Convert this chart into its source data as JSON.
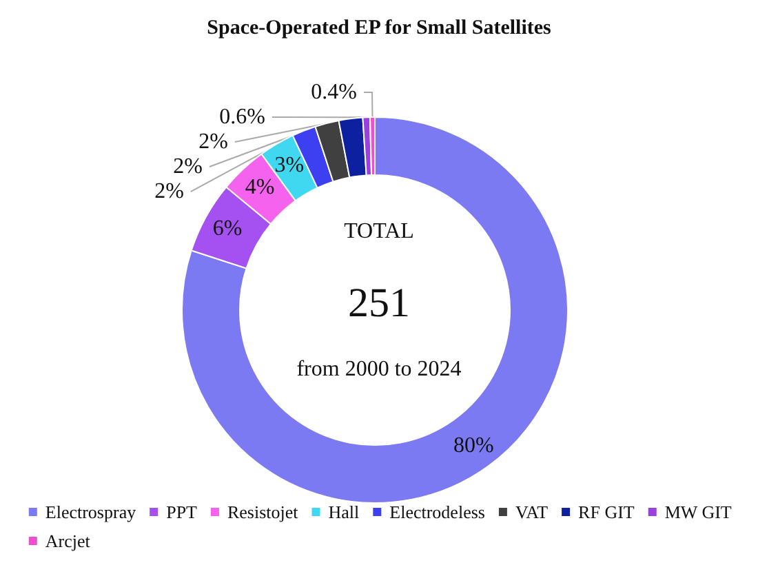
{
  "chart_data": {
    "type": "donut",
    "title": "Space-Operated EP for Small Satellites",
    "categories": [
      "Electrospray",
      "PPT",
      "Resistojet",
      "Hall",
      "Electrodeless",
      "VAT",
      "RF GIT",
      "MW GIT",
      "Arcjet"
    ],
    "values": [
      80,
      6,
      4,
      3,
      2,
      2,
      2,
      0.6,
      0.4
    ],
    "value_labels": [
      "80%",
      "6%",
      "4%",
      "3%",
      "2%",
      "2%",
      "2%",
      "0.6%",
      "0.4%"
    ],
    "colors": [
      "#7b7af2",
      "#a550f0",
      "#f562ee",
      "#40d8f0",
      "#3c40f0",
      "#404040",
      "#0c20a0",
      "#9a40e0",
      "#f050d0"
    ],
    "annotations": [
      "TOTAL",
      "251",
      "from 2000 to 2024"
    ],
    "legend": "bottom"
  }
}
